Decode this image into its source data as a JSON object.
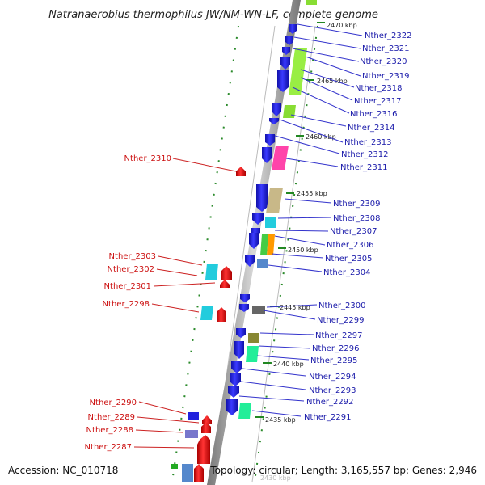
{
  "title": "Natranaerobius thermophilus JW/NM-WN-LF, complete genome",
  "footer": {
    "accession": "Accession: NC_010718",
    "topology": "Topology: circular; Length: 3,165,557 bp; Genes: 2,946"
  },
  "colors": {
    "gene_forward": "#2222dd",
    "gene_reverse": "#ee1111",
    "label_forward": "#1a1aaa",
    "label_reverse": "#cc1111",
    "backbone": "#9a9a9a",
    "tick": "#228822"
  },
  "kbp_markers": [
    "2470 kbp",
    "2465 kbp",
    "2460 kbp",
    "2455 kbp",
    "2450 kbp",
    "2445 kbp",
    "2440 kbp",
    "2435 kbp",
    "2430 kbp"
  ],
  "right_labels": [
    "Nther_2322",
    "Nther_2321",
    "Nther_2320",
    "Nther_2319",
    "Nther_2318",
    "Nther_2317",
    "Nther_2316",
    "Nther_2314",
    "Nther_2313",
    "Nther_2312",
    "Nther_2311",
    "Nther_2309",
    "Nther_2308",
    "Nther_2307",
    "Nther_2306",
    "Nther_2305",
    "Nther_2304",
    "Nther_2300",
    "Nther_2299",
    "Nther_2297",
    "Nther_2296",
    "Nther_2295",
    "Nther_2294",
    "Nther_2293",
    "Nther_2292",
    "Nther_2291"
  ],
  "left_labels": [
    "Nther_2310",
    "Nther_2303",
    "Nther_2302",
    "Nther_2301",
    "Nther_2298",
    "Nther_2290",
    "Nther_2289",
    "Nther_2288",
    "Nther_2287"
  ]
}
